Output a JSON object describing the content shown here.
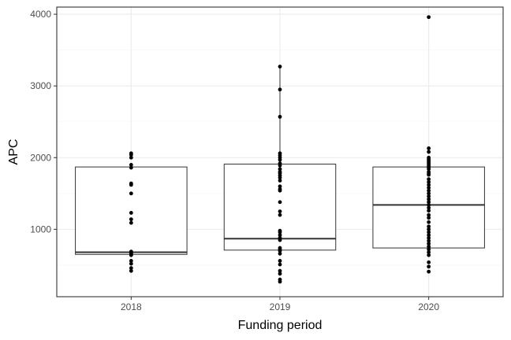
{
  "chart_data": {
    "type": "box",
    "xlabel": "Funding period",
    "ylabel": "APC",
    "categories": [
      "2018",
      "2019",
      "2020"
    ],
    "ylim": [
      60,
      4100
    ],
    "yticks": [
      1000,
      2000,
      3000,
      4000
    ],
    "grid": true,
    "legend": "none",
    "boxes": [
      {
        "category": "2018",
        "q1": 650,
        "median": 680,
        "q3": 1870,
        "whisker_low": 650,
        "whisker_high": 1870
      },
      {
        "category": "2019",
        "q1": 710,
        "median": 870,
        "q3": 1910,
        "whisker_low": 710,
        "whisker_high": 3270
      },
      {
        "category": "2020",
        "q1": 740,
        "median": 1340,
        "q3": 1870,
        "whisker_low": 740,
        "whisker_high": 1870
      }
    ],
    "points": [
      {
        "category": "2018",
        "values": [
          2060,
          2040,
          2000,
          1900,
          1860,
          1640,
          1620,
          1500,
          1230,
          1140,
          1090,
          690,
          670,
          660,
          650,
          640,
          560,
          520,
          460,
          420
        ]
      },
      {
        "category": "2019",
        "values": [
          3270,
          2950,
          2570,
          2060,
          2030,
          2000,
          1970,
          1920,
          1890,
          1840,
          1800,
          1780,
          1750,
          1720,
          1680,
          1600,
          1560,
          1540,
          1380,
          1250,
          1200,
          980,
          960,
          920,
          880,
          850,
          740,
          720,
          700,
          660,
          560,
          510,
          420,
          380,
          300,
          270
        ]
      },
      {
        "category": "2020",
        "values": [
          3960,
          2130,
          2080,
          2000,
          1980,
          1960,
          1940,
          1920,
          1900,
          1880,
          1860,
          1840,
          1800,
          1780,
          1760,
          1700,
          1660,
          1620,
          1580,
          1540,
          1500,
          1460,
          1420,
          1380,
          1340,
          1300,
          1260,
          1200,
          1160,
          1100,
          1040,
          1000,
          960,
          920,
          880,
          840,
          800,
          760,
          720,
          680,
          640,
          540,
          480,
          410
        ]
      }
    ],
    "colors": {
      "points": "#000000",
      "box_fill": "#ffffff",
      "box_stroke": "#333333",
      "grid_major": "#ebebeb",
      "grid_minor": "#f5f5f5",
      "panel_border": "#333333"
    }
  }
}
